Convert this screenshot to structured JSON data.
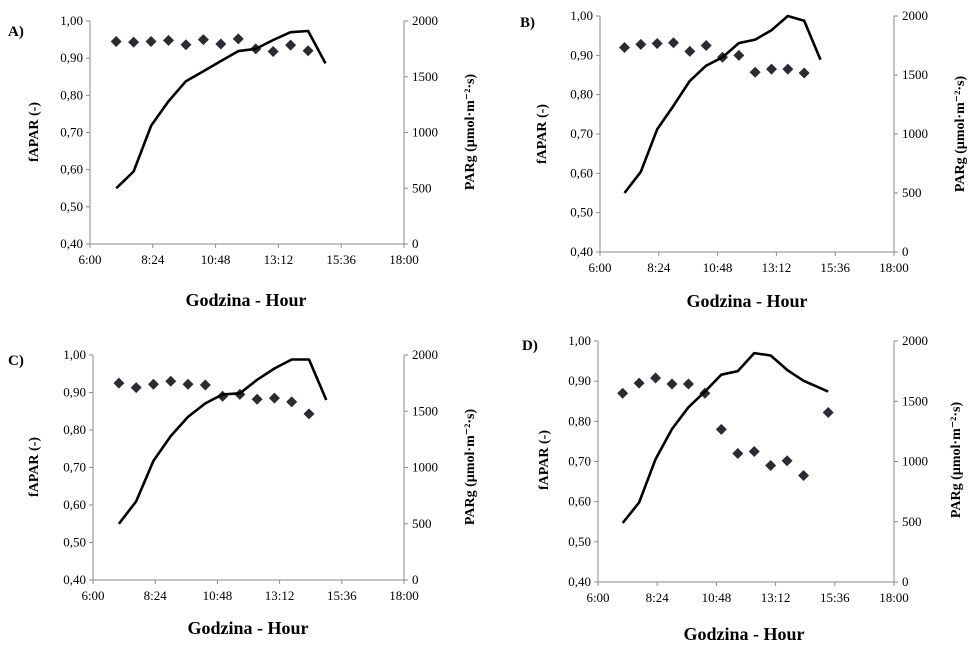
{
  "chart_data": [
    {
      "type": "line",
      "panel_label": "A)",
      "xlabel": "Godzina - Hour",
      "ylabel_left": "fAPAR (-)",
      "ylabel_right": "PARg (µmol·m⁻²·s)",
      "xticks": [
        "6:00",
        "8:24",
        "10:48",
        "13:12",
        "15:36",
        "18:00"
      ],
      "yticks_left": [
        "0,40",
        "0,50",
        "0,60",
        "0,70",
        "0,80",
        "0,90",
        "1,00"
      ],
      "yticks_right": [
        "0",
        "500",
        "1000",
        "1500",
        "2000"
      ],
      "xlim_hours": [
        6,
        18
      ],
      "ylim_left": [
        0.4,
        1.0
      ],
      "ylim_right": [
        0,
        2000
      ],
      "grid": false,
      "series": [
        {
          "marker": "diamond",
          "axis": "left",
          "x": [
            "7:00",
            "7:40",
            "8:20",
            "9:00",
            "9:40",
            "10:20",
            "11:00",
            "11:40",
            "12:20",
            "13:00",
            "13:40",
            "14:20"
          ],
          "y": [
            0.945,
            0.943,
            0.945,
            0.948,
            0.936,
            0.95,
            0.938,
            0.952,
            0.925,
            0.918,
            0.935,
            0.92
          ]
        },
        {
          "line": "solid",
          "axis": "right",
          "x": [
            "7:00",
            "7:40",
            "8:20",
            "9:00",
            "9:40",
            "10:20",
            "11:00",
            "11:40",
            "12:20",
            "13:00",
            "13:40",
            "14:20",
            "15:00"
          ],
          "y": [
            500,
            650,
            1060,
            1280,
            1460,
            1550,
            1640,
            1730,
            1750,
            1830,
            1900,
            1910,
            1620
          ]
        }
      ]
    },
    {
      "type": "line",
      "panel_label": "B)",
      "xlabel": "Godzina - Hour",
      "ylabel_left": "fAPAR (-)",
      "ylabel_right": "PARg (µmol·m⁻²·s)",
      "xticks": [
        "6:00",
        "8:24",
        "10:48",
        "13:12",
        "15:36",
        "18:00"
      ],
      "yticks_left": [
        "0,40",
        "0,50",
        "0,60",
        "0,70",
        "0,80",
        "0,90",
        "1,00"
      ],
      "yticks_right": [
        "0",
        "500",
        "1000",
        "1500",
        "2000"
      ],
      "xlim_hours": [
        6,
        18
      ],
      "ylim_left": [
        0.4,
        1.0
      ],
      "ylim_right": [
        0,
        2000
      ],
      "grid": false,
      "series": [
        {
          "marker": "diamond",
          "axis": "left",
          "x": [
            "7:00",
            "7:40",
            "8:20",
            "9:00",
            "9:40",
            "10:20",
            "11:00",
            "11:40",
            "12:20",
            "13:00",
            "13:40",
            "14:20"
          ],
          "y": [
            0.92,
            0.928,
            0.93,
            0.932,
            0.91,
            0.925,
            0.895,
            0.9,
            0.857,
            0.865,
            0.865,
            0.855
          ]
        },
        {
          "line": "solid",
          "axis": "right",
          "x": [
            "7:00",
            "7:40",
            "8:20",
            "9:00",
            "9:40",
            "10:20",
            "11:00",
            "11:40",
            "12:20",
            "13:00",
            "13:40",
            "14:20",
            "15:00"
          ],
          "y": [
            500,
            680,
            1040,
            1240,
            1450,
            1580,
            1650,
            1770,
            1800,
            1880,
            2000,
            1960,
            1630
          ]
        }
      ]
    },
    {
      "type": "line",
      "panel_label": "C)",
      "xlabel": "Godzina - Hour",
      "ylabel_left": "fAPAR (-)",
      "ylabel_right": "PARg (µmol·m⁻²·s)",
      "xticks": [
        "6:00",
        "8:24",
        "10:48",
        "13:12",
        "15:36",
        "18:00"
      ],
      "yticks_left": [
        "0,40",
        "0,50",
        "0,60",
        "0,70",
        "0,80",
        "0,90",
        "1,00"
      ],
      "yticks_right": [
        "0",
        "500",
        "1000",
        "1500",
        "2000"
      ],
      "xlim_hours": [
        6,
        18
      ],
      "ylim_left": [
        0.4,
        1.0
      ],
      "ylim_right": [
        0,
        2000
      ],
      "grid": false,
      "series": [
        {
          "marker": "diamond",
          "axis": "left",
          "x": [
            "7:00",
            "7:40",
            "8:20",
            "9:00",
            "9:40",
            "10:20",
            "11:00",
            "11:40",
            "12:20",
            "13:00",
            "13:40",
            "14:20"
          ],
          "y": [
            0.925,
            0.913,
            0.922,
            0.93,
            0.922,
            0.92,
            0.89,
            0.895,
            0.882,
            0.885,
            0.875,
            0.843
          ]
        },
        {
          "line": "solid",
          "axis": "right",
          "x": [
            "7:00",
            "7:40",
            "8:20",
            "9:00",
            "9:40",
            "10:20",
            "11:00",
            "11:40",
            "12:20",
            "13:00",
            "13:40",
            "14:20",
            "15:00"
          ],
          "y": [
            500,
            700,
            1060,
            1280,
            1450,
            1570,
            1650,
            1660,
            1780,
            1880,
            1960,
            1960,
            1600
          ]
        }
      ]
    },
    {
      "type": "line",
      "panel_label": "D)",
      "xlabel": "Godzina - Hour",
      "ylabel_left": "fAPAR (-)",
      "ylabel_right": "PARg (µmol·m⁻²·s)",
      "xticks": [
        "6:00",
        "8:24",
        "10:48",
        "13:12",
        "15:36",
        "18:00"
      ],
      "yticks_left": [
        "0,40",
        "0,50",
        "0,60",
        "0,70",
        "0,80",
        "0,90",
        "1,00"
      ],
      "yticks_right": [
        "0",
        "500",
        "1000",
        "1500",
        "2000"
      ],
      "xlim_hours": [
        6,
        18
      ],
      "ylim_left": [
        0.4,
        1.0
      ],
      "ylim_right": [
        0,
        2000
      ],
      "grid": false,
      "series": [
        {
          "marker": "diamond",
          "axis": "left",
          "x": [
            "7:00",
            "7:40",
            "8:20",
            "9:00",
            "9:40",
            "10:20",
            "11:00",
            "11:40",
            "12:20",
            "13:00",
            "13:40",
            "14:20",
            "15:20"
          ],
          "y": [
            0.87,
            0.895,
            0.908,
            0.893,
            0.893,
            0.87,
            0.78,
            0.72,
            0.725,
            0.69,
            0.702,
            0.665,
            0.822
          ]
        },
        {
          "line": "solid",
          "axis": "right",
          "x": [
            "7:00",
            "7:40",
            "8:20",
            "9:00",
            "9:40",
            "10:20",
            "11:00",
            "11:40",
            "12:20",
            "13:00",
            "13:40",
            "14:20",
            "15:20"
          ],
          "y": [
            490,
            660,
            1020,
            1270,
            1450,
            1580,
            1720,
            1750,
            1900,
            1880,
            1760,
            1670,
            1580
          ]
        }
      ]
    }
  ]
}
